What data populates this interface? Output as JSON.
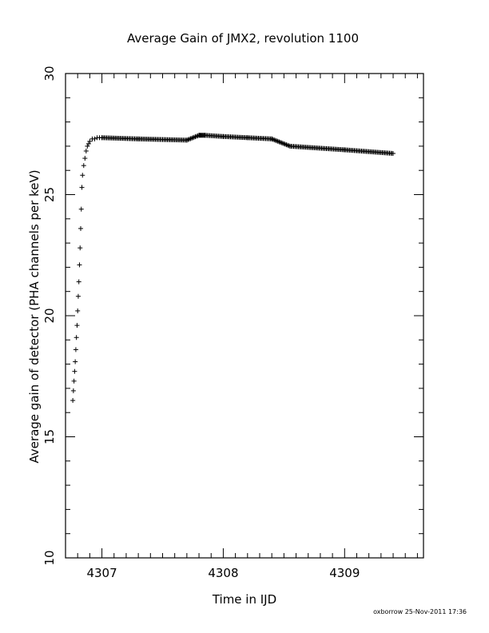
{
  "chart_data": {
    "type": "scatter",
    "title": "Average Gain of JMX2, revolution 1100",
    "xlabel": "Time in IJD",
    "ylabel": "Average gain of detector (PHA channels per keV)",
    "xlim": [
      4306.7,
      4309.65
    ],
    "ylim": [
      10,
      30
    ],
    "xticks": [
      4307,
      4308,
      4309
    ],
    "yticks": [
      10,
      15,
      20,
      25,
      30
    ],
    "marker": "+",
    "marker_color": "#000000",
    "series": [
      {
        "name": "",
        "x": [
          4306.75,
          4306.76,
          4306.77,
          4306.78,
          4306.79,
          4306.8
        ],
        "y": [
          16.5,
          16.9,
          17.3,
          17.7,
          18.1,
          18.6
        ]
      }
    ],
    "scatter_points": {
      "x": [
        4306.76,
        4306.765,
        4306.77,
        4306.775,
        4306.78,
        4306.785,
        4306.79,
        4306.795,
        4306.8,
        4306.805,
        4306.81,
        4306.815,
        4306.82,
        4306.825,
        4306.83,
        4306.835,
        4306.84,
        4306.85,
        4306.86,
        4306.87,
        4306.88,
        4306.89,
        4306.9,
        4306.92,
        4306.94,
        4306.96,
        4306.98,
        4307.0
      ],
      "y": [
        16.5,
        16.9,
        17.3,
        17.7,
        18.1,
        18.6,
        19.1,
        19.6,
        20.2,
        20.8,
        21.4,
        22.1,
        22.8,
        23.6,
        24.4,
        25.3,
        25.8,
        26.2,
        26.5,
        26.8,
        27.0,
        27.1,
        27.2,
        27.3,
        27.3,
        27.35,
        27.35,
        27.35
      ]
    },
    "trend_points": {
      "x": [
        4307.0,
        4307.3,
        4307.7,
        4307.8,
        4307.85,
        4308.0,
        4308.2,
        4308.4,
        4308.55,
        4309.0,
        4309.4
      ],
      "y": [
        27.35,
        27.3,
        27.25,
        27.45,
        27.45,
        27.4,
        27.35,
        27.3,
        27.0,
        26.85,
        26.7
      ]
    },
    "footer_stamp": "oxborrow 25-Nov-2011 17:36"
  }
}
